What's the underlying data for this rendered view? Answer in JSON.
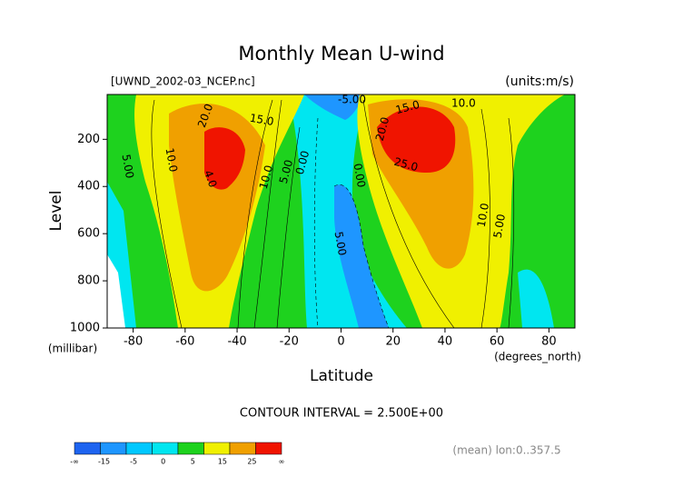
{
  "chart_data": {
    "type": "contour",
    "title": "Monthly Mean U-wind",
    "subtitle_left": "[UWND_2002-03_NCEP.nc]",
    "subtitle_right": "(units:m/s)",
    "x_label": "Latitude",
    "x_units": "(degrees_north)",
    "y_label": "Level",
    "y_units": "(millibar)",
    "xlim": [
      -90,
      90
    ],
    "xticks": [
      -80,
      -60,
      -40,
      -20,
      0,
      20,
      40,
      60,
      80
    ],
    "ylim": [
      1000,
      10
    ],
    "yticks": [
      200,
      400,
      600,
      800,
      1000
    ],
    "contour_note": "CONTOUR INTERVAL = 2.500E+00",
    "footer": "(mean) lon:0..357.5",
    "annotations": [
      "20.0",
      "15.0",
      "10.0",
      "5.00",
      "4.0",
      "10.0",
      "5.00",
      "0.00",
      "5.00",
      "0.00",
      "-5.00",
      "15.0",
      "20.0",
      "25.0",
      "10.0",
      "10.0",
      "5.00",
      "0.00"
    ],
    "colorbar": {
      "colors": [
        "#1e64f0",
        "#1e96ff",
        "#00c8ff",
        "#00e6f0",
        "#1ed21e",
        "#f0f000",
        "#f0a000",
        "#f01400"
      ],
      "labels": [
        "-∞",
        "-15",
        "-5",
        "0",
        "5",
        "15",
        "25",
        "∞"
      ]
    }
  }
}
